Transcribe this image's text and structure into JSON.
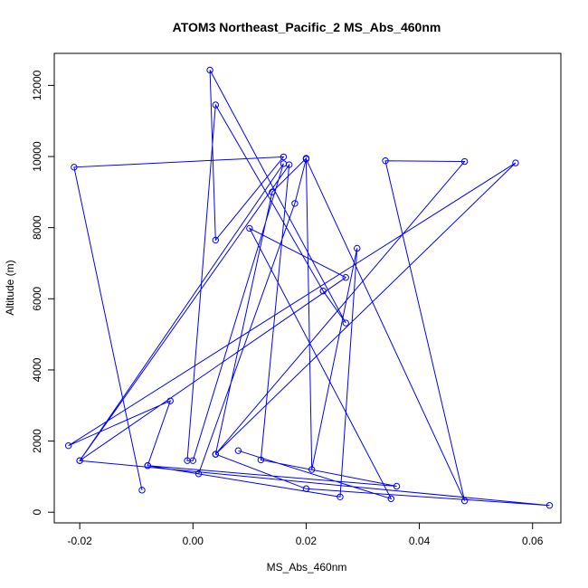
{
  "chart_data": {
    "type": "line",
    "title": "ATOM3 Northeast_Pacific_2 MS_Abs_460nm",
    "xlabel": "MS_Abs_460nm",
    "ylabel": "Altitude (m)",
    "xlim": [
      -0.0245,
      0.065
    ],
    "ylim": [
      -300,
      12900
    ],
    "x_ticks": [
      -0.02,
      0.0,
      0.02,
      0.04,
      0.06
    ],
    "x_tick_labels": [
      "-0.02",
      "0.00",
      "0.02",
      "0.04",
      "0.06"
    ],
    "y_ticks": [
      0,
      2000,
      4000,
      6000,
      8000,
      10000,
      12000
    ],
    "y_tick_labels": [
      "0",
      "2000",
      "4000",
      "6000",
      "8000",
      "10000",
      "12000"
    ],
    "grid": false,
    "line_color": "#0000ff",
    "marker": "open-circle",
    "series": [
      {
        "x": [
          -0.009,
          -0.021,
          0.016,
          0.004,
          0.003,
          0.027,
          0.023,
          0.004,
          -0.001,
          0.0,
          0.016,
          -0.02,
          0.017,
          0.012,
          0.036,
          -0.008,
          0.001,
          0.018,
          0.02,
          0.048,
          0.034,
          0.048,
          0.004,
          0.057,
          -0.022,
          -0.004,
          -0.008,
          0.026,
          0.029,
          0.021,
          0.02,
          0.014,
          0.004,
          0.02,
          0.063,
          -0.02,
          0.027,
          0.01,
          0.035,
          0.008
        ],
        "y": [
          620,
          9700,
          9990,
          7650,
          12430,
          5320,
          6220,
          11450,
          1450,
          1450,
          9800,
          1450,
          9770,
          1470,
          730,
          1310,
          1080,
          8680,
          9930,
          320,
          9880,
          9860,
          1630,
          9820,
          1870,
          3130,
          1310,
          430,
          7420,
          1200,
          9950,
          9000,
          1630,
          660,
          190,
          1450,
          6600,
          7980,
          380,
          1730
        ]
      }
    ]
  }
}
